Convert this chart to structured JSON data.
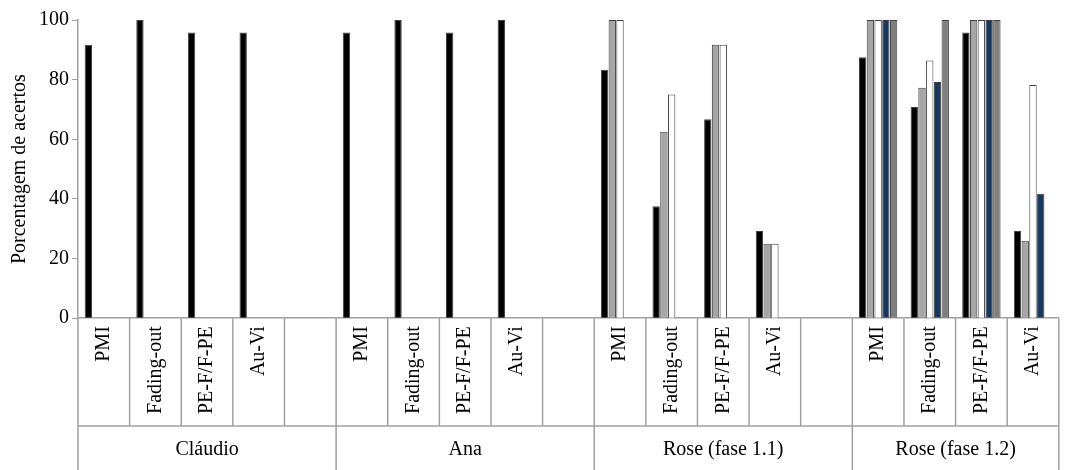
{
  "chart_data": {
    "type": "bar",
    "ylabel": "Porcentagem de acertos",
    "categories": [
      "PMI",
      "Fading-out",
      "PE-F/F-PE",
      "Au-Vi",
      null,
      "PMI",
      "Fading-out",
      "PE-F/F-PE",
      "Au-Vi",
      null,
      "PMI",
      "Fading-out",
      "PE-F/F-PE",
      "Au-Vi",
      null,
      "PMI",
      "Fading-out",
      "PE-F/F-PE",
      "Au-Vi"
    ],
    "series": [
      {
        "color": "#000000",
        "values": [
          91.7,
          100,
          95.8,
          95.8,
          null,
          95.8,
          100,
          95.8,
          100,
          null,
          83.3,
          37.5,
          66.7,
          29.2,
          null,
          87.5,
          70.8,
          95.8,
          29.2
        ]
      },
      {
        "color": "#a6a6a6",
        "values": [
          null,
          null,
          null,
          null,
          null,
          null,
          null,
          null,
          null,
          null,
          100,
          62.5,
          91.7,
          25,
          null,
          100,
          77.3,
          100,
          26
        ]
      },
      {
        "color": "#ffffff",
        "values": [
          null,
          null,
          null,
          null,
          null,
          null,
          null,
          null,
          null,
          null,
          100,
          75,
          91.7,
          25,
          null,
          100,
          86.4,
          100,
          78.2
        ]
      },
      {
        "color": "#17375e",
        "values": [
          null,
          null,
          null,
          null,
          null,
          null,
          null,
          null,
          null,
          null,
          null,
          null,
          null,
          null,
          null,
          100,
          79.2,
          100,
          41.7
        ]
      },
      {
        "color": "#7f7f7f",
        "values": [
          null,
          null,
          null,
          null,
          null,
          null,
          null,
          null,
          null,
          null,
          null,
          null,
          null,
          null,
          null,
          100,
          100,
          100,
          null
        ]
      }
    ],
    "annotations": [
      "Cláudio",
      "Ana",
      "Rose (fase 1.1)",
      "Rose (fase 1.2)"
    ],
    "ylim": [
      0,
      100
    ],
    "yticks": [
      0,
      20,
      40,
      60,
      80,
      100
    ],
    "grid": false,
    "legend": false
  }
}
